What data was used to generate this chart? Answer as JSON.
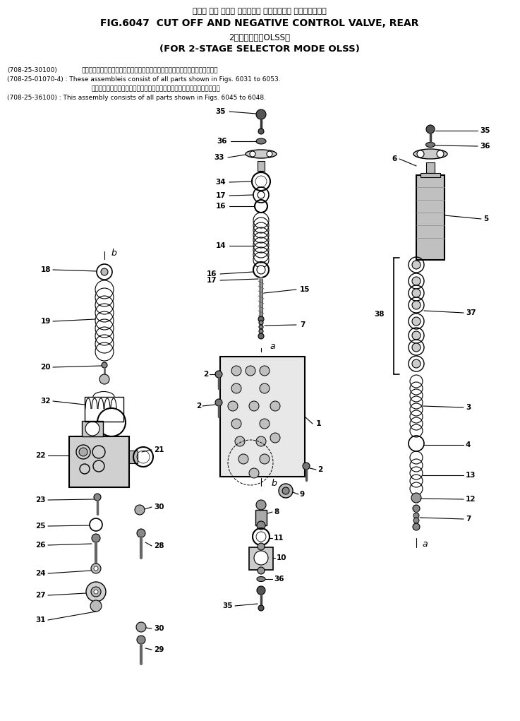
{
  "title_jp": "カット オフ および ネガティブ コントロール バルブ、リヤー",
  "title_en": "FIG.6047  CUT OFF AND NEGATIVE CONTROL VALVE, REAR",
  "subtitle_jp": "2段モード切換OLSS用",
  "subtitle_en": "(FOR 2-STAGE SELECTOR MODE OLSS)",
  "note1a": "(708-25-30100)",
  "note1a_jp": "これらのアセンブリの構成部品は第６０１１図および第６０５３図を含みます。",
  "note1b": "(708-25-01070-4) : These assembleis consist of all parts shown in Figs. 6031 to 6053.",
  "note2a_jp": "このアセンブリの構成部品は第６０４５図から第６０４８図まで含みます。",
  "note2b": "(708-25-36100) : This assembly consists of all parts shown in Figs. 6045 to 6048.",
  "bg_color": "#ffffff",
  "line_color": "#000000",
  "text_color": "#000000"
}
